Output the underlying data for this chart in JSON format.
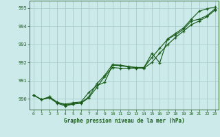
{
  "title": "Graphe pression niveau de la mer (hPa)",
  "bg_color": "#cceaea",
  "grid_color": "#aacccc",
  "line_color": "#1a5c1a",
  "spine_color": "#336633",
  "xlim": [
    -0.5,
    23.5
  ],
  "ylim": [
    989.4,
    995.4
  ],
  "yticks": [
    990,
    991,
    992,
    993,
    994,
    995
  ],
  "xticks": [
    0,
    1,
    2,
    3,
    4,
    5,
    6,
    7,
    8,
    9,
    10,
    11,
    12,
    13,
    14,
    15,
    16,
    17,
    18,
    19,
    20,
    21,
    22,
    23
  ],
  "series": {
    "line1": [
      990.2,
      989.95,
      990.1,
      989.8,
      989.7,
      989.78,
      989.82,
      990.35,
      990.72,
      990.9,
      991.85,
      991.82,
      991.75,
      991.72,
      991.72,
      992.5,
      991.98,
      993.3,
      993.6,
      993.9,
      994.38,
      994.82,
      994.96,
      995.05
    ],
    "line2": [
      990.2,
      989.95,
      990.1,
      989.8,
      989.65,
      989.72,
      989.78,
      990.1,
      990.82,
      991.28,
      991.88,
      991.85,
      991.78,
      991.72,
      991.72,
      992.28,
      992.78,
      993.28,
      993.52,
      993.82,
      994.28,
      994.38,
      994.58,
      994.95
    ],
    "line3": [
      990.2,
      989.95,
      990.05,
      989.75,
      989.6,
      989.7,
      989.75,
      990.05,
      990.62,
      991.22,
      991.72,
      991.68,
      991.68,
      991.68,
      991.68,
      992.0,
      992.52,
      992.98,
      993.38,
      993.72,
      994.08,
      994.28,
      994.52,
      994.88
    ]
  }
}
